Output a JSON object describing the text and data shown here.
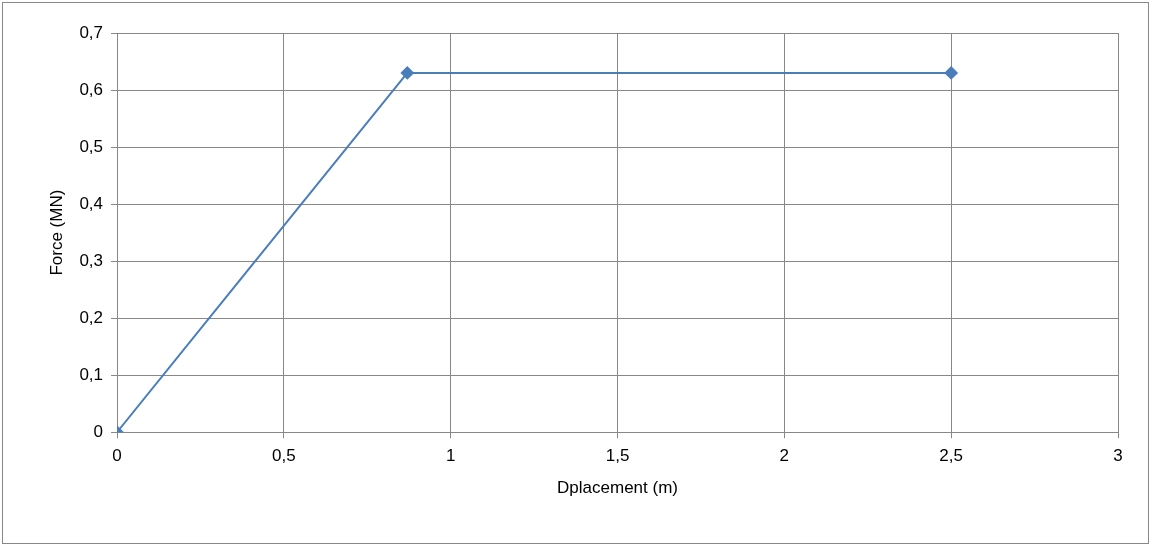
{
  "chart_data": {
    "type": "line",
    "xlabel": "Dplacement (m)",
    "ylabel": "Force (MN)",
    "x": [
      0,
      0.87,
      2.5
    ],
    "series": [
      {
        "color": "#4a7ebb",
        "values": [
          0,
          0.63,
          0.63
        ]
      }
    ],
    "xlim": [
      0,
      3
    ],
    "xticks": [
      0,
      {
        "value": 0.5,
        "label": "0,5"
      },
      1,
      {
        "value": 1.5,
        "label": "1,5"
      },
      2,
      {
        "value": 2.5,
        "label": "2,5"
      },
      3
    ],
    "ylim": [
      0,
      0.7
    ],
    "yticks": [
      0,
      {
        "value": 0.1,
        "label": "0,1"
      },
      {
        "value": 0.2,
        "label": "0,2"
      },
      {
        "value": 0.3,
        "label": "0,3"
      },
      {
        "value": 0.4,
        "label": "0,4"
      },
      {
        "value": 0.5,
        "label": "0,5"
      },
      {
        "value": 0.6,
        "label": "0,6"
      },
      {
        "value": 0.7,
        "label": "0,7"
      }
    ],
    "grid": true,
    "legend": false,
    "marker": "diamond",
    "line_style": "solid"
  }
}
